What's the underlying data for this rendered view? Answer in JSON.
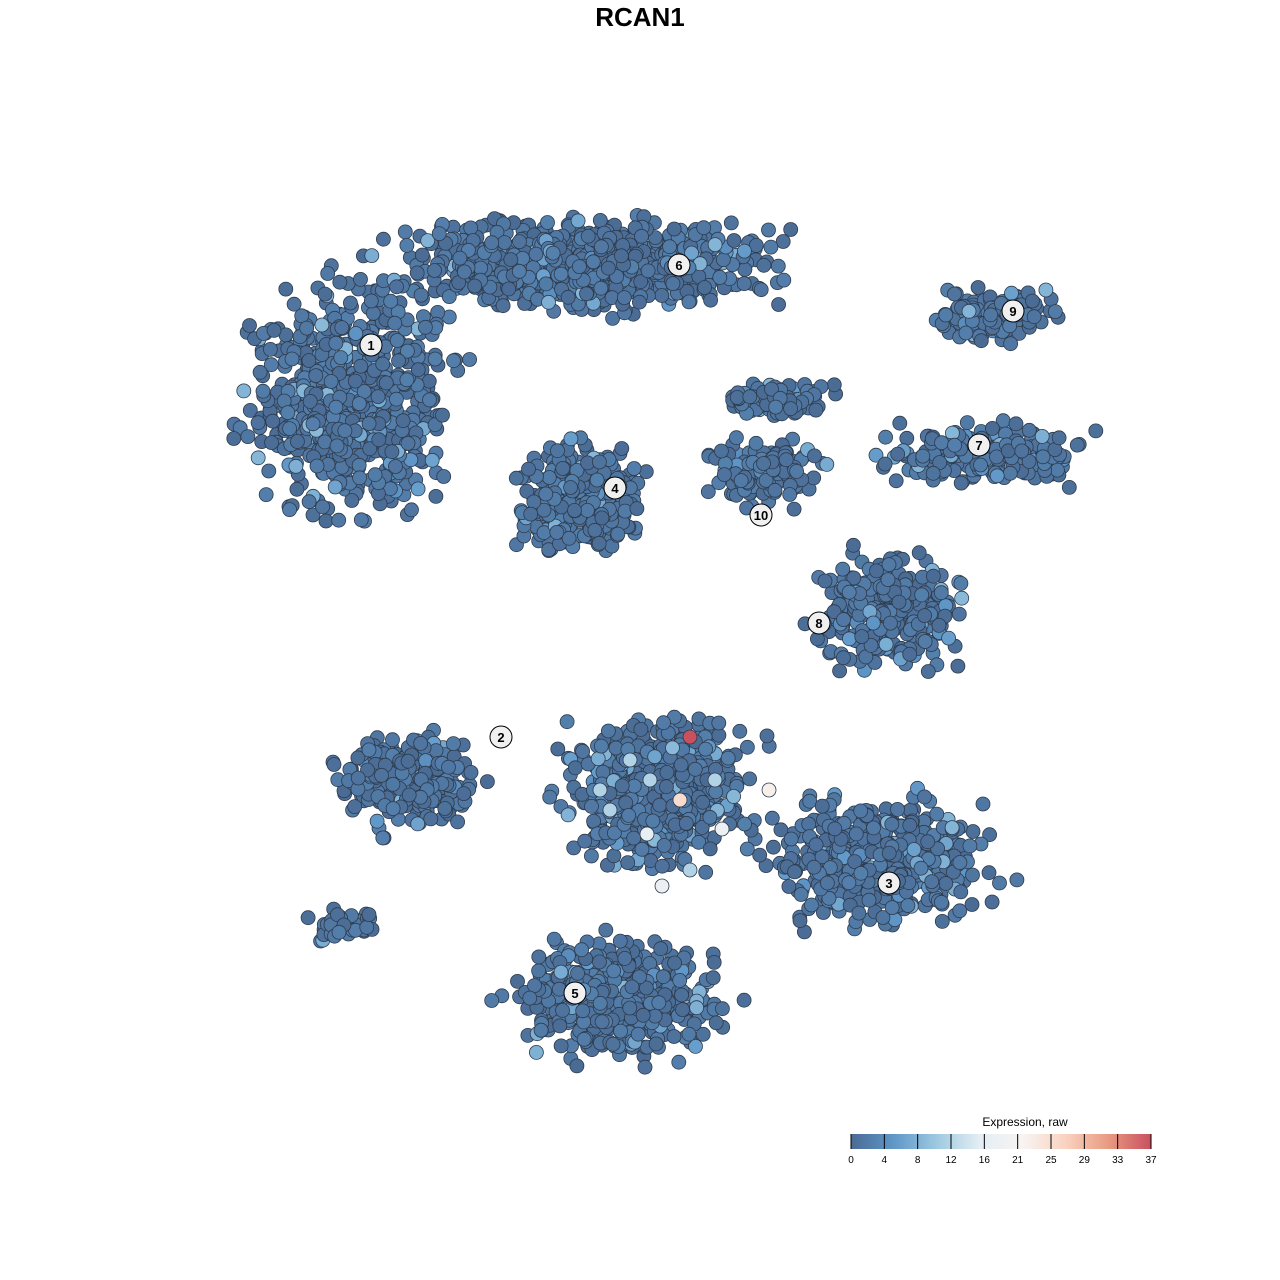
{
  "chart_data": {
    "type": "scatter",
    "title": "RCAN1",
    "xlabel": "",
    "ylabel": "",
    "grid": false,
    "cluster_labels": [
      "1",
      "2",
      "3",
      "4",
      "5",
      "6",
      "7",
      "8",
      "9",
      "10"
    ],
    "legend": {
      "title": "Expression, raw",
      "position": "bottom-right",
      "ticks": [
        "0",
        "4",
        "8",
        "12",
        "16",
        "21",
        "25",
        "29",
        "33",
        "37"
      ],
      "range": [
        0,
        37
      ]
    },
    "color_scale": [
      "#4a6b94",
      "#5f97c8",
      "#9ec9e0",
      "#e4eef4",
      "#f7f4f2",
      "#f9d3c0",
      "#e99a82",
      "#c9505f"
    ],
    "typical_expression": 0,
    "max_expression": 37,
    "notable_points": [
      {
        "cluster_region": "2/3/5 junction",
        "value": 37
      },
      {
        "cluster_region": "2/3/5 junction",
        "value": 25
      },
      {
        "cluster_region": "2/3/5 junction",
        "value": 22
      },
      {
        "cluster_region": "2/3/5 junction",
        "value": 18
      },
      {
        "cluster_region": "2/3/5 junction",
        "value": 18
      },
      {
        "cluster_region": "2/3/5 junction",
        "value": 17
      }
    ]
  }
}
